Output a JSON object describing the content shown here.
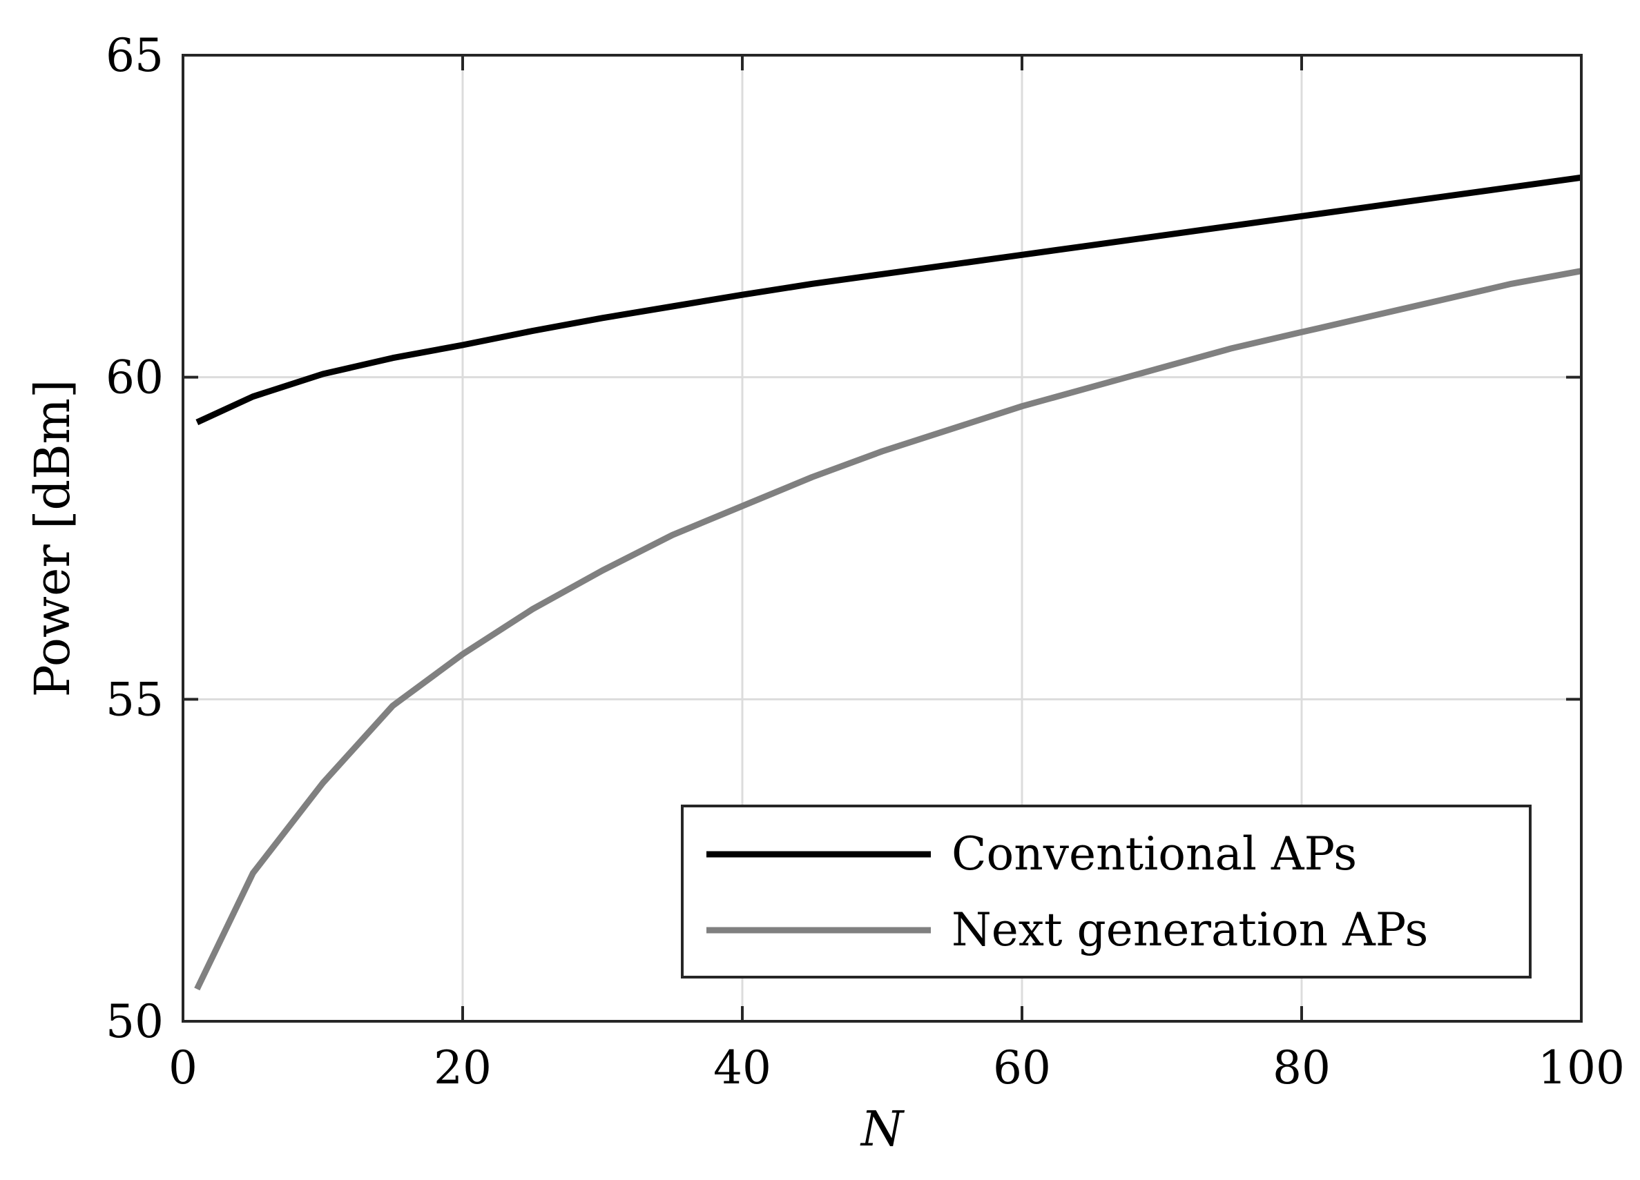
{
  "chart_data": {
    "type": "line",
    "title": "",
    "xlabel": "N",
    "ylabel": "Power [dBm]",
    "xlim": [
      0,
      100
    ],
    "ylim": [
      50,
      65
    ],
    "xticks": [
      0,
      20,
      40,
      60,
      80,
      100
    ],
    "yticks": [
      50,
      55,
      60,
      65
    ],
    "xtick_labels": [
      "0",
      "20",
      "40",
      "60",
      "80",
      "100"
    ],
    "ytick_labels": [
      "50",
      "55",
      "60",
      "65"
    ],
    "grid": true,
    "legend_position": "bottom-right",
    "x": [
      1,
      5,
      10,
      15,
      20,
      25,
      30,
      35,
      40,
      45,
      50,
      55,
      60,
      65,
      70,
      75,
      80,
      85,
      90,
      95,
      100
    ],
    "series": [
      {
        "name": "Conventional APs",
        "color": "#000000",
        "values": [
          59.3,
          59.7,
          60.05,
          60.3,
          60.5,
          60.72,
          60.92,
          61.1,
          61.28,
          61.45,
          61.6,
          61.75,
          61.9,
          62.05,
          62.2,
          62.35,
          62.5,
          62.65,
          62.8,
          62.95,
          63.1
        ]
      },
      {
        "name": "Next generation APs",
        "color": "#808080",
        "values": [
          50.5,
          52.3,
          53.7,
          54.9,
          55.7,
          56.4,
          57.0,
          57.55,
          58.0,
          58.45,
          58.85,
          59.2,
          59.55,
          59.85,
          60.15,
          60.45,
          60.7,
          60.95,
          61.2,
          61.45,
          61.65
        ]
      }
    ]
  }
}
